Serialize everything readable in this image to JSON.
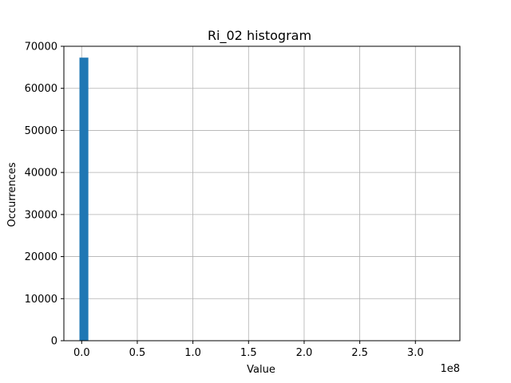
{
  "chart_data": {
    "type": "bar",
    "title": "Ri_02 histogram",
    "xlabel": "Value",
    "ylabel": "Occurrences",
    "x_offset_label": "1e8",
    "xlim": [
      -0.16,
      3.4
    ],
    "ylim": [
      0,
      70000
    ],
    "x_ticks": [
      0.0,
      0.5,
      1.0,
      1.5,
      2.0,
      2.5,
      3.0
    ],
    "x_tick_labels": [
      "0.0",
      "0.5",
      "1.0",
      "1.5",
      "2.0",
      "2.5",
      "3.0"
    ],
    "y_ticks": [
      0,
      10000,
      20000,
      30000,
      40000,
      50000,
      60000,
      70000
    ],
    "y_tick_labels": [
      "0",
      "10000",
      "20000",
      "30000",
      "40000",
      "50000",
      "60000",
      "70000"
    ],
    "grid": true,
    "bar_color": "#1f77b4",
    "bins": [
      {
        "x0": -0.02,
        "x1": 0.06,
        "count": 67300
      }
    ]
  }
}
